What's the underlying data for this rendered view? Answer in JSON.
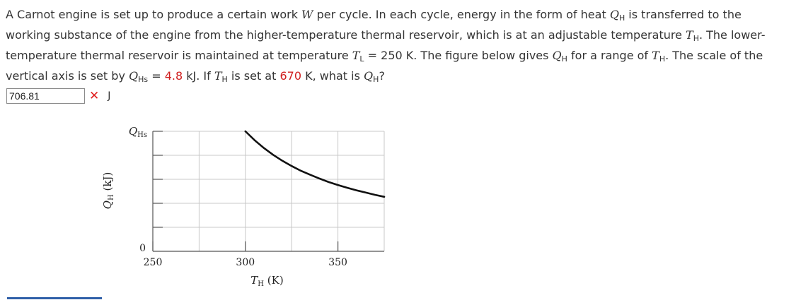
{
  "question": {
    "p1": "A Carnot engine is set up to produce a certain work ",
    "W": "W",
    "p2": " per cycle. In each cycle, energy in the form of heat ",
    "QH_a": "Q",
    "QH_a_sub": "H",
    "p3": " is transferred to the working substance of the engine from the higher-temperature thermal reservoir, which is at an adjustable temperature ",
    "TH_a": "T",
    "TH_a_sub": "H",
    "p4": ". The lower-temperature thermal reservoir is maintained at temperature ",
    "TL": "T",
    "TL_sub": "L",
    "p5": " = 250 K. The figure below gives ",
    "QH_b": "Q",
    "QH_b_sub": "H",
    "p6": " for a range of ",
    "TH_b": "T",
    "TH_b_sub": "H",
    "p7": ". The scale of the vertical axis is set by ",
    "QHs": "Q",
    "QHs_sub": "Hs",
    "p8": " = ",
    "qhs_value": "4.8",
    "p9": " kJ. If ",
    "TH_c": "T",
    "TH_c_sub": "H",
    "p10": " is set at ",
    "th_value": "670",
    "p11": " K, what is ",
    "QH_c": "Q",
    "QH_c_sub": "H",
    "p12": "?"
  },
  "answer": {
    "value": "706.81",
    "status_icon": "x-mark-icon",
    "status_symbol": "✕",
    "unit": "J"
  },
  "colors": {
    "highlight": "#d02020",
    "wrong": "#e02020",
    "grid": "#c8c8c8",
    "curve": "#111111"
  },
  "chart_data": {
    "type": "line",
    "xlabel_var": "T",
    "xlabel_sub": "H",
    "xlabel_unit": " (K)",
    "ylabel_var": "Q",
    "ylabel_sub": "H",
    "ylabel_unit": " (kJ)",
    "ytick_top_var": "Q",
    "ytick_top_sub": "Hs",
    "ytick_zero": "0",
    "xticks": [
      "250",
      "300",
      "350"
    ],
    "xlim": [
      250,
      375
    ],
    "ylim": [
      0,
      4.8
    ],
    "grid": true,
    "series": [
      {
        "x": [
          300,
          305,
          310,
          315,
          320,
          325,
          330,
          335,
          340,
          345,
          350,
          355,
          360,
          365,
          370,
          375
        ],
        "y": [
          4.8,
          4.44,
          4.13,
          3.86,
          3.62,
          3.41,
          3.22,
          3.06,
          2.91,
          2.77,
          2.65,
          2.54,
          2.44,
          2.35,
          2.26,
          2.18
        ]
      }
    ]
  }
}
